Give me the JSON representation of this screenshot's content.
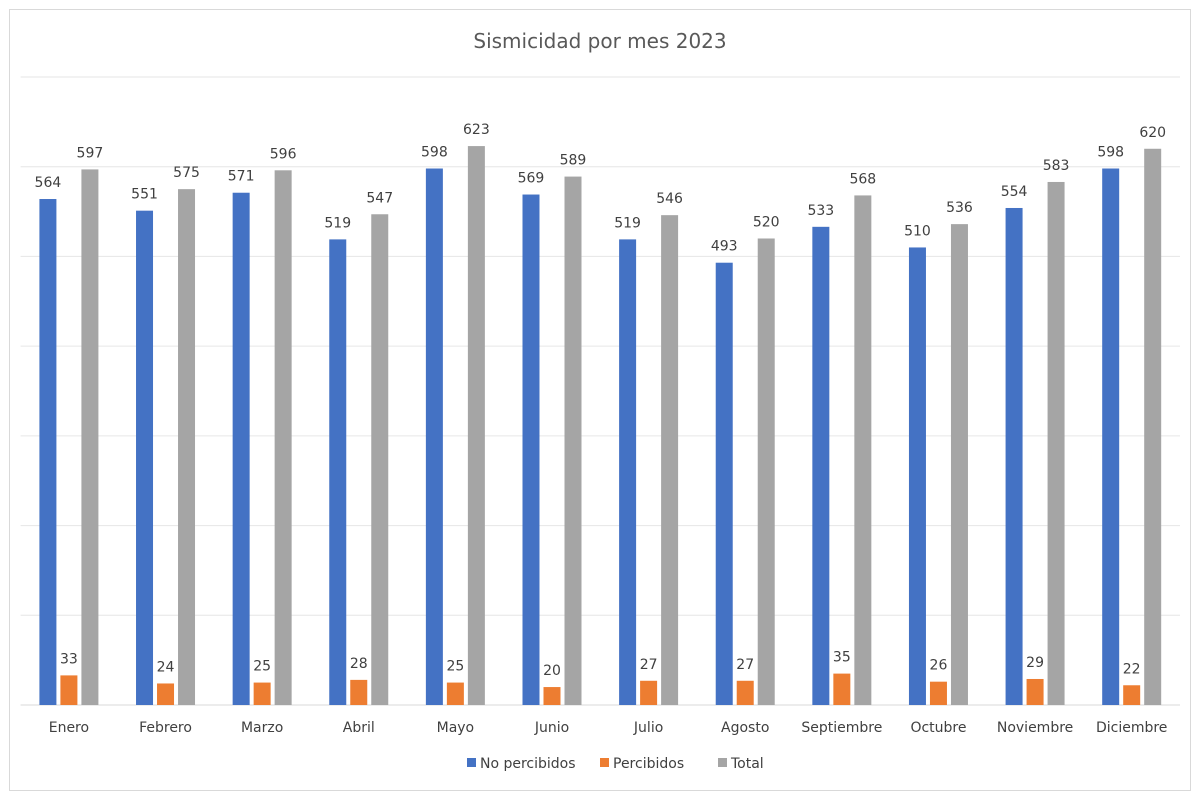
{
  "chart_data": {
    "type": "bar",
    "title": "Sismicidad por mes 2023",
    "xlabel": "",
    "ylabel": "",
    "ylim": [
      0,
      700
    ],
    "grid": true,
    "grid_step": 100,
    "y_tick_labels_shown": false,
    "legend_placement": "bottom",
    "categories": [
      "Enero",
      "Febrero",
      "Marzo",
      "Abril",
      "Mayo",
      "Junio",
      "Julio",
      "Agosto",
      "Septiembre",
      "Octubre",
      "Noviembre",
      "Diciembre"
    ],
    "series": [
      {
        "name": "No percibidos",
        "color": "#4472C4",
        "values": [
          564,
          551,
          571,
          519,
          598,
          569,
          519,
          493,
          533,
          510,
          554,
          598
        ]
      },
      {
        "name": "Percibidos",
        "color": "#ED7D31",
        "values": [
          33,
          24,
          25,
          28,
          25,
          20,
          27,
          27,
          35,
          26,
          29,
          22
        ]
      },
      {
        "name": "Total",
        "color": "#A5A5A5",
        "values": [
          597,
          575,
          596,
          547,
          623,
          589,
          546,
          520,
          568,
          536,
          583,
          620
        ]
      }
    ]
  }
}
